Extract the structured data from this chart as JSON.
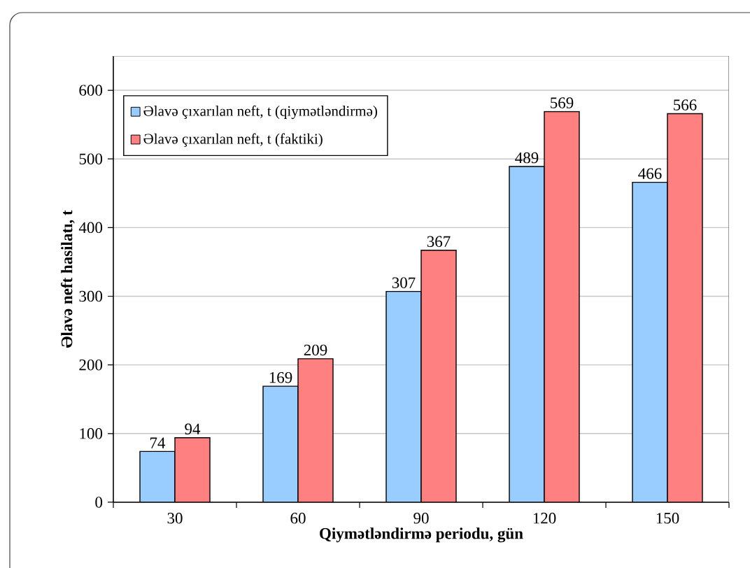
{
  "chart_data": {
    "type": "bar",
    "xlabel": "Qiymətləndirmə periodu, gün",
    "ylabel": "Əlavə neft hasilatı, t",
    "categories": [
      "30",
      "60",
      "90",
      "120",
      "150"
    ],
    "series": [
      {
        "name": "Əlavə çıxarılan neft, t (qiymətləndirmə)",
        "color": "#99ccff",
        "values": [
          74,
          169,
          307,
          489,
          466
        ]
      },
      {
        "name": "Əlavə çıxarılan neft, t (faktiki)",
        "color": "#ff8080",
        "values": [
          94,
          209,
          367,
          569,
          566
        ]
      }
    ],
    "ylim": [
      0,
      650
    ],
    "yticks": [
      0,
      100,
      200,
      300,
      400,
      500,
      600
    ],
    "grid": "y",
    "legend": "top left",
    "data_labels": true
  }
}
